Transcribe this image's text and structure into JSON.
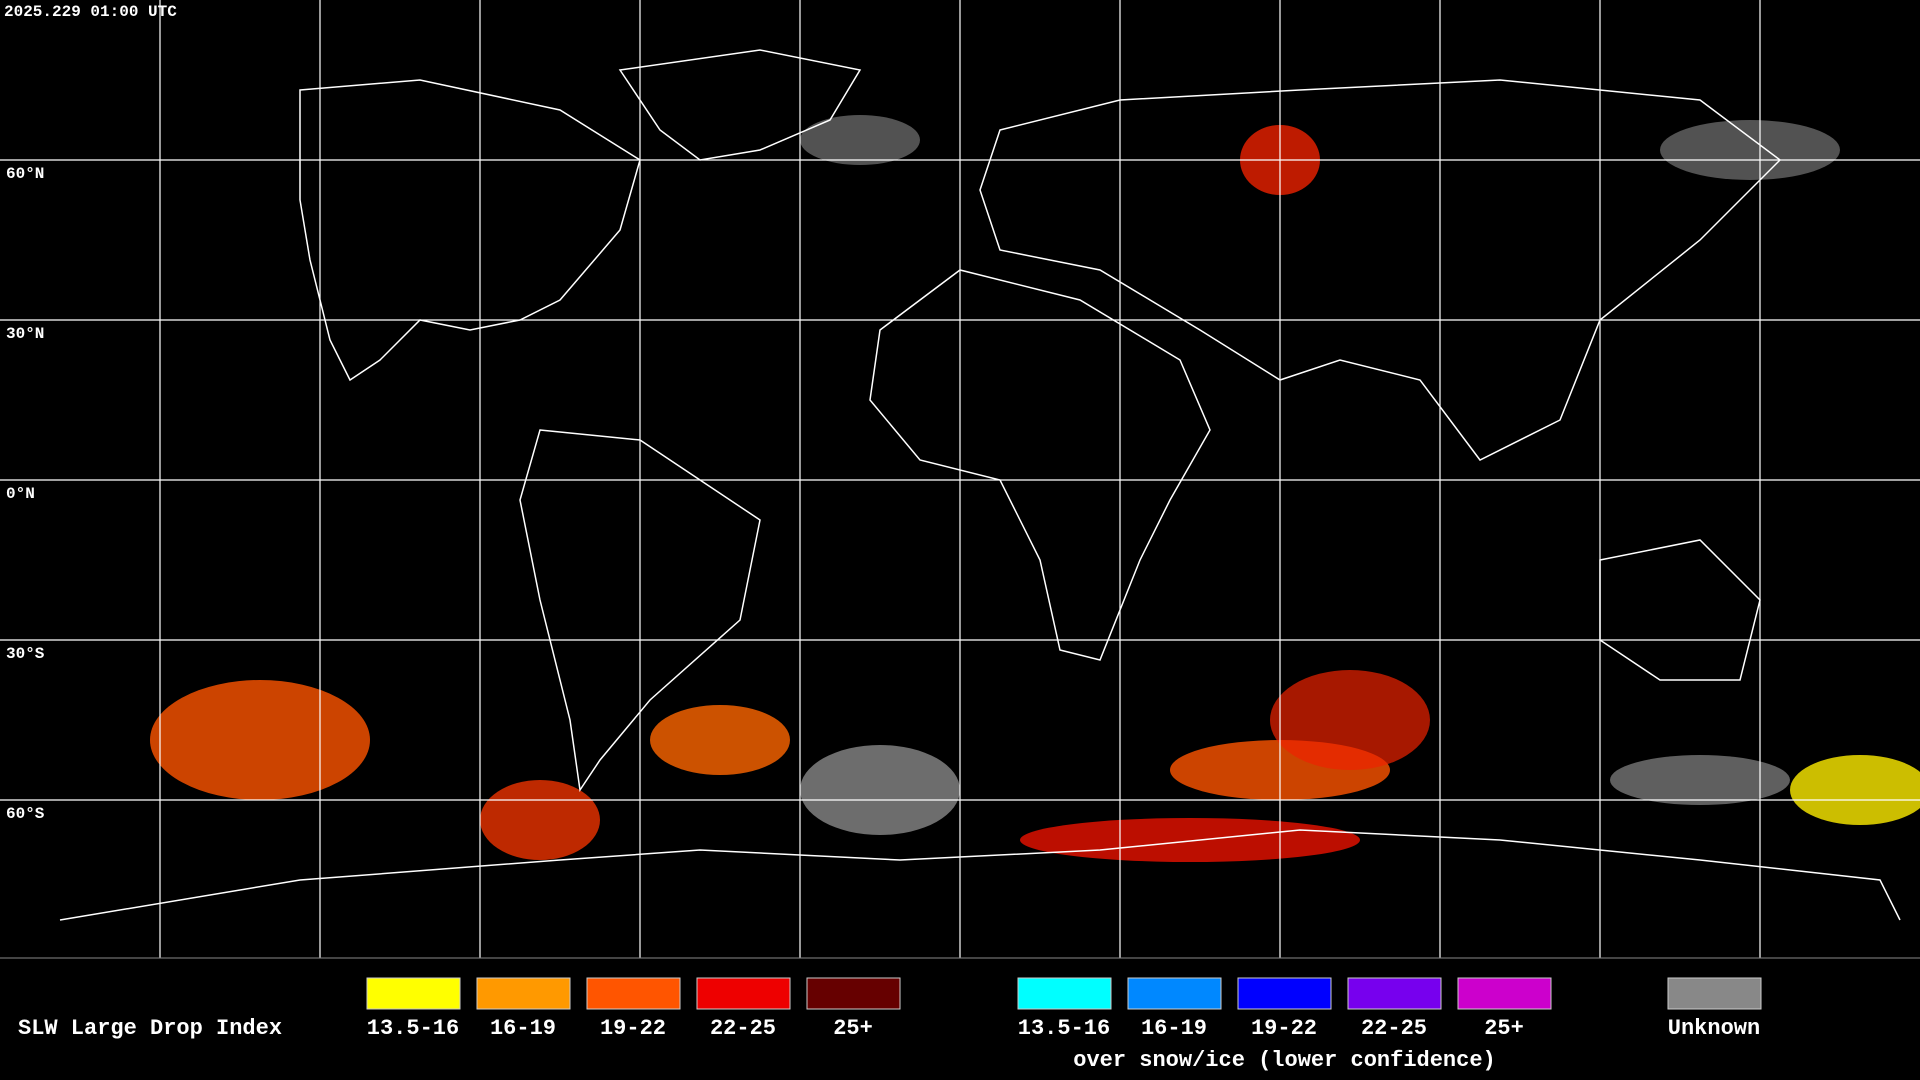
{
  "timestamp": "2025.229 01:00 UTC",
  "latitude_labels": [
    "60°N",
    "30°N",
    "0°N",
    "30°S",
    "60°S"
  ],
  "legend": {
    "title": "SLW Large Drop Index",
    "groups": [
      {
        "items": [
          {
            "label": "13.5-16",
            "color": "#ffff00"
          },
          {
            "label": "16-19",
            "color": "#ff9900"
          },
          {
            "label": "19-22",
            "color": "#ff5500"
          },
          {
            "label": "22-25",
            "color": "#ee0000"
          },
          {
            "label": "25+",
            "color": "#660000"
          }
        ]
      },
      {
        "caption": "over snow/ice (lower confidence)",
        "items": [
          {
            "label": "13.5-16",
            "color": "#00ffff"
          },
          {
            "label": "16-19",
            "color": "#0088ff"
          },
          {
            "label": "19-22",
            "color": "#0000ff"
          },
          {
            "label": "22-25",
            "color": "#7700ee"
          },
          {
            "label": "25+",
            "color": "#cc00cc"
          }
        ]
      },
      {
        "items": [
          {
            "label": "Unknown",
            "color": "#888888"
          }
        ]
      }
    ]
  }
}
